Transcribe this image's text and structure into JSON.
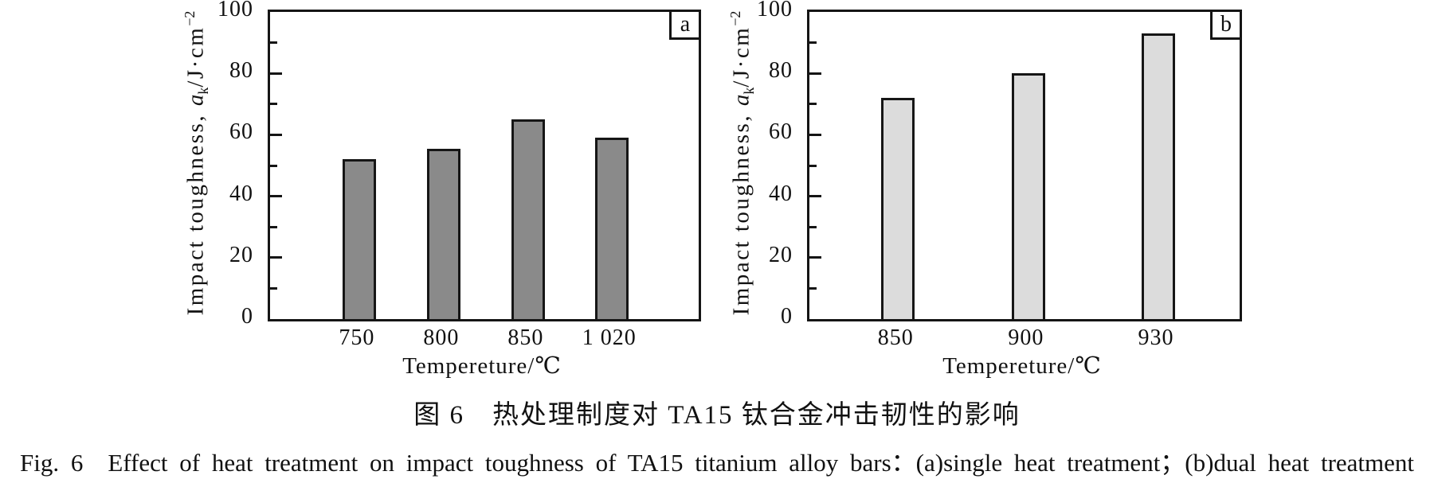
{
  "figure": {
    "captions": {
      "zh": "图 6　热处理制度对 TA15 钛合金冲击韧性的影响",
      "en": "Fig. 6　Effect of heat treatment on impact toughness of TA15 titanium alloy bars：(a)single heat treatment；(b)dual heat treatment"
    }
  },
  "chart_data": [
    {
      "type": "bar",
      "panel_label": "a",
      "categories": [
        "750",
        "800",
        "850",
        "1 020"
      ],
      "values": [
        52,
        55.5,
        65,
        59
      ],
      "xlabel": "Tempereture/℃",
      "ylabel": "Impact toughness, aₖ/J·cm⁻²",
      "ylabel_parts": {
        "prefix": "Impact toughness, ",
        "symbol": "a",
        "subscript": "k",
        "unit": "/J·cm",
        "superscript": "−2"
      },
      "ylim": [
        0,
        100
      ],
      "ytick_interval": 20,
      "minor_tick_interval": 10,
      "grid": false,
      "legend": "none",
      "bar_fill": "#8a8a8a",
      "bar_border": "#161616"
    },
    {
      "type": "bar",
      "panel_label": "b",
      "categories": [
        "850",
        "900",
        "930"
      ],
      "values": [
        72,
        80,
        93
      ],
      "xlabel": "Tempereture/℃",
      "ylabel": "Impact toughness, aₖ/J·cm⁻²",
      "ylabel_parts": {
        "prefix": "Impact toughness, ",
        "symbol": "a",
        "subscript": "k",
        "unit": "/J·cm",
        "superscript": "−2"
      },
      "ylim": [
        0,
        100
      ],
      "ytick_interval": 20,
      "minor_tick_interval": 10,
      "grid": false,
      "legend": "none",
      "bar_fill": "#dcdcdc",
      "bar_border": "#161616"
    }
  ]
}
